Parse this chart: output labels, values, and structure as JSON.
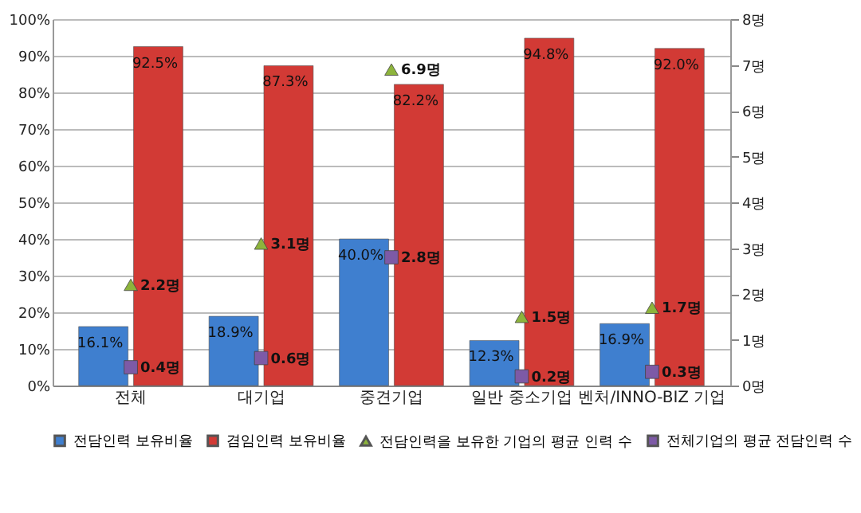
{
  "chart_data": {
    "type": "bar",
    "categories": [
      "전체",
      "대기업",
      "중견기업",
      "일반 중소기업",
      "벤처/INNO-BIZ 기업"
    ],
    "series": [
      {
        "name": "전담인력 보유비율",
        "color": "#3f7fcf",
        "values": [
          16.1,
          18.9,
          40.0,
          12.3,
          16.9
        ],
        "value_labels": [
          "16.1%",
          "18.9%",
          "40.0%",
          "12.3%",
          "16.9%"
        ]
      },
      {
        "name": "겸임인력 보유비율",
        "color": "#d23a35",
        "values": [
          92.5,
          87.3,
          82.2,
          94.8,
          92.0
        ],
        "value_labels": [
          "92.5%",
          "87.3%",
          "82.2%",
          "94.8%",
          "92.0%"
        ]
      },
      {
        "name": "전담인력을 보유한 기업의 평균 인력 수",
        "type": "scatter",
        "marker": "triangle",
        "axis": "y2",
        "color": "#8db43c",
        "values": [
          2.2,
          3.1,
          6.9,
          1.5,
          1.7
        ],
        "value_labels": [
          "2.2명",
          "3.1명",
          "6.9명",
          "1.5명",
          "1.7명"
        ]
      },
      {
        "name": "전체기업의 평균 전담인력 수",
        "type": "scatter",
        "marker": "square",
        "axis": "y2",
        "color": "#7d5aa6",
        "values": [
          0.4,
          0.6,
          2.8,
          0.2,
          0.3
        ],
        "value_labels": [
          "0.4명",
          "0.6명",
          "2.8명",
          "0.2명",
          "0.3명"
        ]
      }
    ],
    "ylim": [
      0,
      100
    ],
    "yticks": [
      {
        "value": 0,
        "label": "0%"
      },
      {
        "value": 10,
        "label": "10%"
      },
      {
        "value": 20,
        "label": "20%"
      },
      {
        "value": 30,
        "label": "30%"
      },
      {
        "value": 40,
        "label": "40%"
      },
      {
        "value": 50,
        "label": "50%"
      },
      {
        "value": 60,
        "label": "60%"
      },
      {
        "value": 70,
        "label": "70%"
      },
      {
        "value": 80,
        "label": "80%"
      },
      {
        "value": 90,
        "label": "90%"
      },
      {
        "value": 100,
        "label": "100%"
      }
    ],
    "y2lim": [
      0,
      8
    ],
    "y2ticks": [
      {
        "value": 0,
        "label": "0명"
      },
      {
        "value": 1,
        "label": "1명"
      },
      {
        "value": 2,
        "label": "2명"
      },
      {
        "value": 3,
        "label": "3명"
      },
      {
        "value": 4,
        "label": "4명"
      },
      {
        "value": 5,
        "label": "5명"
      },
      {
        "value": 6,
        "label": "6명"
      },
      {
        "value": 7,
        "label": "7명"
      },
      {
        "value": 8,
        "label": "8명"
      }
    ],
    "grid": "y",
    "legend": "bottom"
  }
}
